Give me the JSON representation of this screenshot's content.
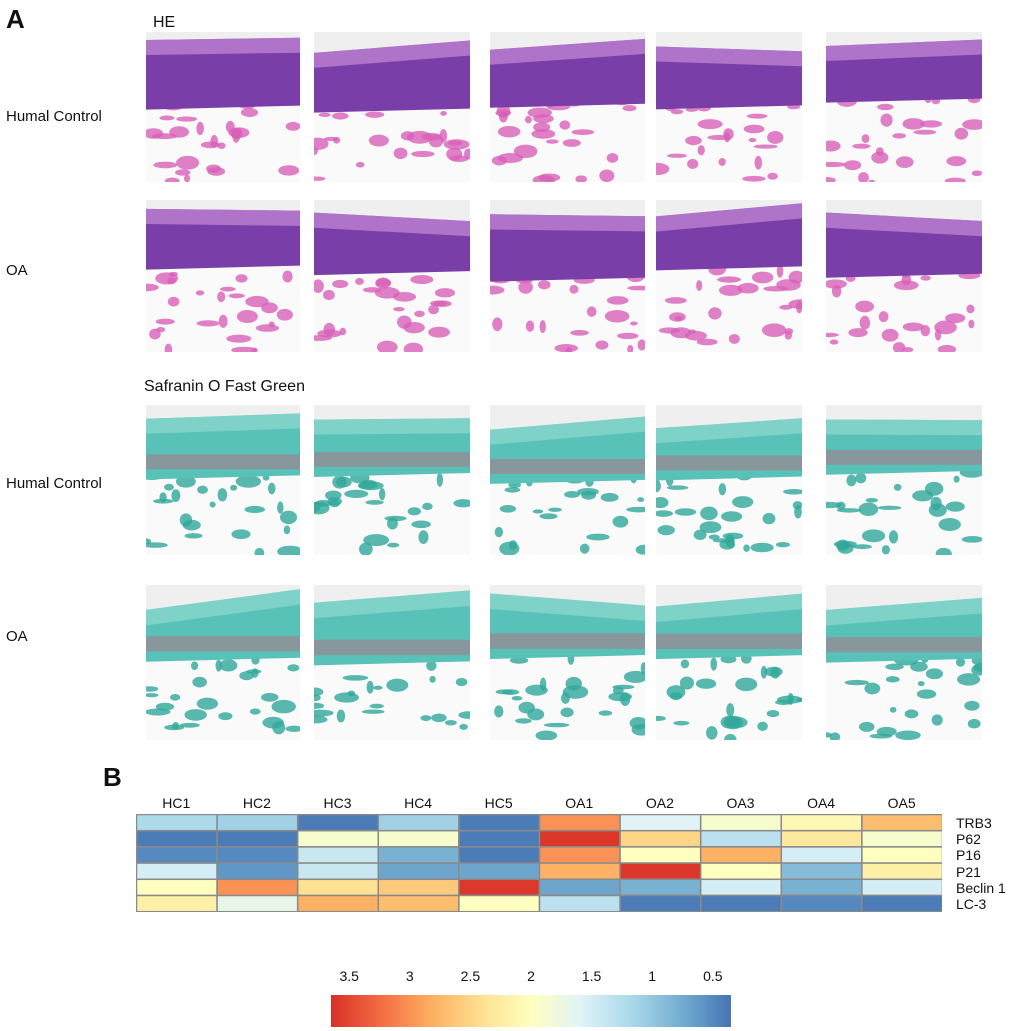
{
  "panel_a": {
    "letter": "A",
    "he_title": "HE",
    "safranin_title": "Safranin O Fast Green",
    "row_labels": [
      "Humal Control",
      "OA",
      "Humal Control",
      "OA"
    ]
  },
  "panel_b": {
    "letter": "B"
  },
  "colors": {
    "he_cartilage": "#7a3ea8",
    "he_bone": "#d860b8",
    "sofg_cartilage": "#58c2b8",
    "sofg_bone": "#2fa89a",
    "sofg_red": "#e04868"
  },
  "chart_data": {
    "type": "heatmap",
    "columns": [
      "HC1",
      "HC2",
      "HC3",
      "HC4",
      "HC5",
      "OA1",
      "OA2",
      "OA3",
      "OA4",
      "OA5"
    ],
    "rows": [
      "TRB3",
      "P62",
      "P16",
      "P21",
      "Beclin 1",
      "LC-3"
    ],
    "values": [
      [
        1.2,
        1.1,
        0.4,
        1.1,
        0.4,
        3.0,
        1.6,
        1.9,
        2.1,
        2.7
      ],
      [
        0.4,
        0.4,
        1.9,
        1.9,
        0.4,
        3.6,
        2.5,
        1.3,
        2.3,
        1.9
      ],
      [
        0.5,
        0.5,
        1.4,
        0.8,
        0.4,
        3.0,
        2.0,
        2.8,
        1.5,
        2.0
      ],
      [
        1.5,
        0.6,
        1.4,
        0.7,
        0.7,
        2.8,
        3.6,
        2.0,
        0.9,
        2.2
      ],
      [
        2.0,
        3.0,
        2.4,
        2.6,
        3.6,
        0.7,
        0.8,
        1.5,
        0.8,
        1.5
      ],
      [
        2.2,
        1.7,
        2.8,
        2.7,
        2.0,
        1.3,
        0.4,
        0.4,
        0.5,
        0.4
      ]
    ],
    "colorbar": {
      "ticks": [
        "3.5",
        "3",
        "2.5",
        "2",
        "1.5",
        "1",
        "0.5"
      ],
      "range": [
        0.35,
        3.65
      ],
      "colors": [
        "#d73027",
        "#f46d43",
        "#fdae61",
        "#fee090",
        "#ffffbf",
        "#e0f3f8",
        "#abd9e9",
        "#74add1",
        "#4575b4"
      ]
    }
  }
}
